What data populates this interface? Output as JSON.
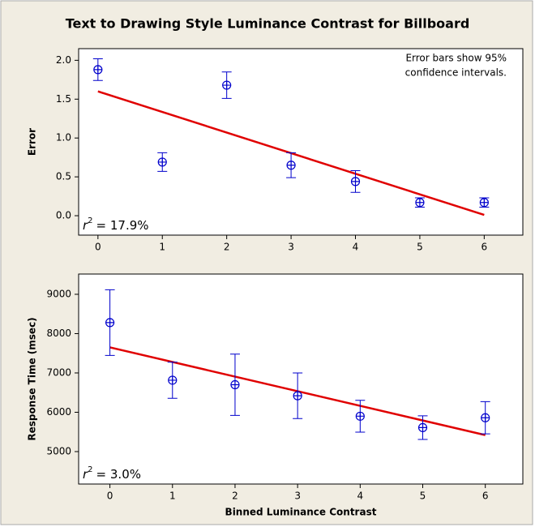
{
  "title": "Text to Drawing Style Luminance Contrast for Billboard",
  "chart_data": [
    {
      "type": "scatter",
      "y_label": "Error",
      "annotation": [
        "Error bars show 95%",
        "confidence intervals."
      ],
      "r2": {
        "symbol": "r",
        "exponent": "2",
        "text": "= 17.9%"
      },
      "x": [
        0,
        1,
        2,
        3,
        4,
        5,
        6
      ],
      "series": [
        {
          "color": "#0000cc",
          "values": [
            1.88,
            0.69,
            1.68,
            0.65,
            0.44,
            0.17,
            0.17
          ],
          "errors": [
            0.14,
            0.12,
            0.17,
            0.16,
            0.14,
            0.06,
            0.06
          ]
        }
      ],
      "fit": {
        "color": "#e00000",
        "x": [
          0,
          6
        ],
        "values": [
          1.6,
          0.01
        ]
      },
      "xlim": [
        -0.3,
        6.6
      ],
      "xticks": [
        0,
        1,
        2,
        3,
        4,
        5,
        6
      ],
      "ylim": [
        -0.25,
        2.15
      ],
      "yticks": [
        {
          "value": 0,
          "label": "0.0"
        },
        0.5,
        {
          "value": 1,
          "label": "1.0"
        },
        1.5,
        {
          "value": 2,
          "label": "2.0"
        }
      ]
    },
    {
      "type": "scatter",
      "y_label": "Response Time (msec)",
      "x_label": "Binned Luminance Contrast",
      "r2": {
        "symbol": "r",
        "exponent": "2",
        "text": "= 3.0%"
      },
      "x": [
        0,
        1,
        2,
        3,
        4,
        5,
        6
      ],
      "series": [
        {
          "color": "#0000cc",
          "values": [
            8280,
            6815,
            6700,
            6420,
            5900,
            5610,
            5860
          ],
          "errors": [
            835,
            460,
            780,
            580,
            405,
            300,
            410
          ]
        }
      ],
      "fit": {
        "color": "#e00000",
        "x": [
          0,
          6
        ],
        "values": [
          7650,
          5420
        ]
      },
      "xlim": [
        -0.5,
        6.6
      ],
      "xticks": [
        0,
        1,
        2,
        3,
        4,
        5,
        6
      ],
      "ylim": [
        4175,
        9515
      ],
      "yticks": [
        5000,
        6000,
        7000,
        8000,
        9000
      ]
    }
  ]
}
